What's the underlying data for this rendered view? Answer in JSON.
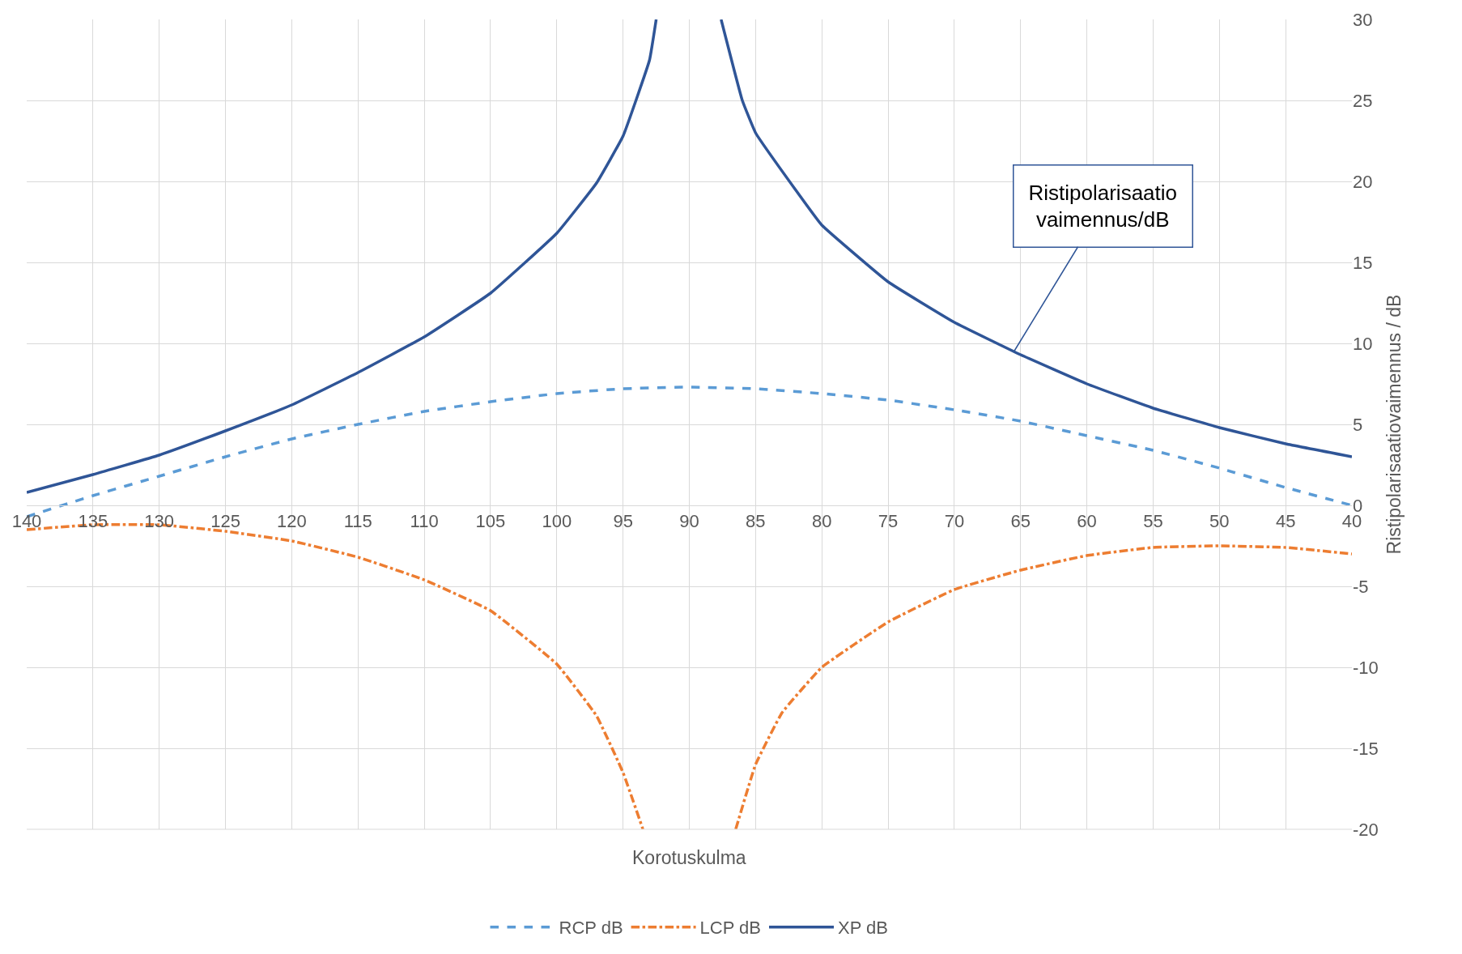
{
  "chart_data": {
    "type": "line",
    "xlabel": "Korotuskulma",
    "ylabel": "Ristipolarisaatiovaimennus / dB",
    "xlim": [
      140,
      40
    ],
    "xticks": [
      140,
      135,
      130,
      125,
      120,
      115,
      110,
      105,
      100,
      95,
      90,
      85,
      80,
      75,
      70,
      65,
      60,
      55,
      50,
      45,
      40
    ],
    "ylim": [
      -20,
      30
    ],
    "yticks": [
      -20,
      -15,
      -10,
      -5,
      0,
      5,
      10,
      15,
      20,
      25,
      30
    ],
    "grid": true,
    "legend": "bottom",
    "marker": "none",
    "series": [
      {
        "name": "RCP dB",
        "color": "#5b9bd5",
        "line_style": "dashed",
        "x": [
          140,
          135,
          130,
          125,
          120,
          115,
          110,
          105,
          100,
          95,
          90,
          85,
          80,
          75,
          70,
          65,
          60,
          55,
          50,
          45,
          40
        ],
        "values": [
          -0.7,
          0.6,
          1.8,
          3.0,
          4.1,
          5.0,
          5.8,
          6.4,
          6.9,
          7.2,
          7.3,
          7.2,
          6.9,
          6.5,
          5.9,
          5.2,
          4.3,
          3.4,
          2.3,
          1.1,
          0.0
        ]
      },
      {
        "name": "LCP dB",
        "color": "#ed7d31",
        "line_style": "dashdot",
        "x": [
          140,
          135,
          130,
          125,
          120,
          115,
          110,
          105,
          100,
          97,
          95,
          93.5,
          null,
          86.5,
          85,
          83,
          80,
          75,
          70,
          65,
          60,
          55,
          50,
          45,
          40
        ],
        "values": [
          -1.5,
          -1.2,
          -1.2,
          -1.6,
          -2.2,
          -3.2,
          -4.6,
          -6.5,
          -9.8,
          -13,
          -16.5,
          -20,
          null,
          -20,
          -16,
          -12.8,
          -10,
          -7.2,
          -5.2,
          -4.0,
          -3.1,
          -2.6,
          -2.5,
          -2.6,
          -3.0
        ]
      },
      {
        "name": "XP dB",
        "color": "#2f5597",
        "line_style": "solid",
        "x": [
          140,
          135,
          130,
          125,
          120,
          115,
          110,
          105,
          100,
          97,
          95,
          93,
          92.5,
          null,
          87.6,
          86,
          85,
          82,
          80,
          75,
          70,
          65,
          60,
          55,
          50,
          45,
          40
        ],
        "values": [
          0.8,
          1.9,
          3.1,
          4.6,
          6.2,
          8.2,
          10.4,
          13.1,
          16.8,
          19.9,
          22.8,
          27.5,
          30,
          null,
          30,
          25,
          23,
          19.5,
          17.3,
          13.8,
          11.3,
          9.3,
          7.5,
          6.0,
          4.8,
          3.8,
          3.0
        ]
      }
    ],
    "annotations": [
      {
        "text": "Ristipolarisaatio\nvaimennus/dB",
        "x": 65.5,
        "y": 9.5
      }
    ]
  }
}
